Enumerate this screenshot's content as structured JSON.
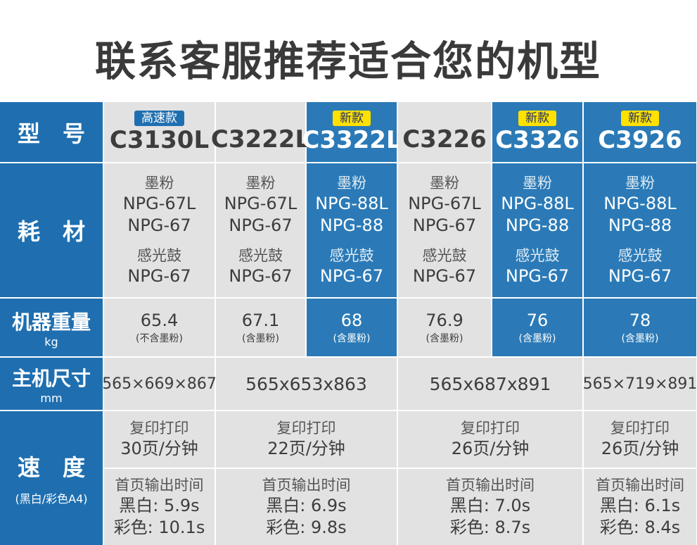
{
  "title": "联系客服推荐适合您的机型",
  "row_labels": {
    "model": "型号",
    "consumables": "耗材",
    "weight": "机器重量",
    "weight_unit": "kg",
    "size": "主机尺寸",
    "size_unit": "mm",
    "speed": "速度",
    "speed_note": "(黑白/彩色A4)"
  },
  "models": [
    {
      "name": "C3130L",
      "badge": "高速款",
      "toner_label": "墨粉",
      "toner": [
        "NPG-67L",
        "NPG-67"
      ],
      "drum_label": "感光鼓",
      "drum": "NPG-67",
      "weight": "65.4",
      "weight_note": "(不含墨粉)"
    },
    {
      "name": "C3222L",
      "badge": "",
      "toner_label": "墨粉",
      "toner": [
        "NPG-67L",
        "NPG-67"
      ],
      "drum_label": "感光鼓",
      "drum": "NPG-67",
      "weight": "67.1",
      "weight_note": "(含墨粉)"
    },
    {
      "name": "C3322L",
      "badge": "新款",
      "toner_label": "墨粉",
      "toner": [
        "NPG-88L",
        "NPG-88"
      ],
      "drum_label": "感光鼓",
      "drum": "NPG-67",
      "weight": "68",
      "weight_note": "(含墨粉)"
    },
    {
      "name": "C3226",
      "badge": "",
      "toner_label": "墨粉",
      "toner": [
        "NPG-67L",
        "NPG-67"
      ],
      "drum_label": "感光鼓",
      "drum": "NPG-67",
      "weight": "76.9",
      "weight_note": "(含墨粉)"
    },
    {
      "name": "C3326",
      "badge": "新款",
      "toner_label": "墨粉",
      "toner": [
        "NPG-88L",
        "NPG-88"
      ],
      "drum_label": "感光鼓",
      "drum": "NPG-67",
      "weight": "76",
      "weight_note": "(含墨粉)"
    },
    {
      "name": "C3926",
      "badge": "新款",
      "toner_label": "墨粉",
      "toner": [
        "NPG-88L",
        "NPG-88"
      ],
      "drum_label": "感光鼓",
      "drum": "NPG-67",
      "weight": "78",
      "weight_note": "(含墨粉)"
    }
  ],
  "sizes": [
    "565×669×867",
    "565x653x863",
    "565x687x891",
    "565×719×891"
  ],
  "speed_groups": [
    {
      "copy_label": "复印打印",
      "copy_speed": "30页/分钟",
      "first_label": "首页输出时间",
      "bw": "黑白: 5.9s",
      "color": "彩色: 10.1s"
    },
    {
      "copy_label": "复印打印",
      "copy_speed": "22页/分钟",
      "first_label": "首页输出时间",
      "bw": "黑白: 6.9s",
      "color": "彩色: 9.8s"
    },
    {
      "copy_label": "复印打印",
      "copy_speed": "26页/分钟",
      "first_label": "首页输出时间",
      "bw": "黑白: 7.0s",
      "color": "彩色: 8.7s"
    },
    {
      "copy_label": "复印打印",
      "copy_speed": "26页/分钟",
      "first_label": "首页输出时间",
      "bw": "黑白: 6.1s",
      "color": "彩色: 8.4s"
    }
  ]
}
